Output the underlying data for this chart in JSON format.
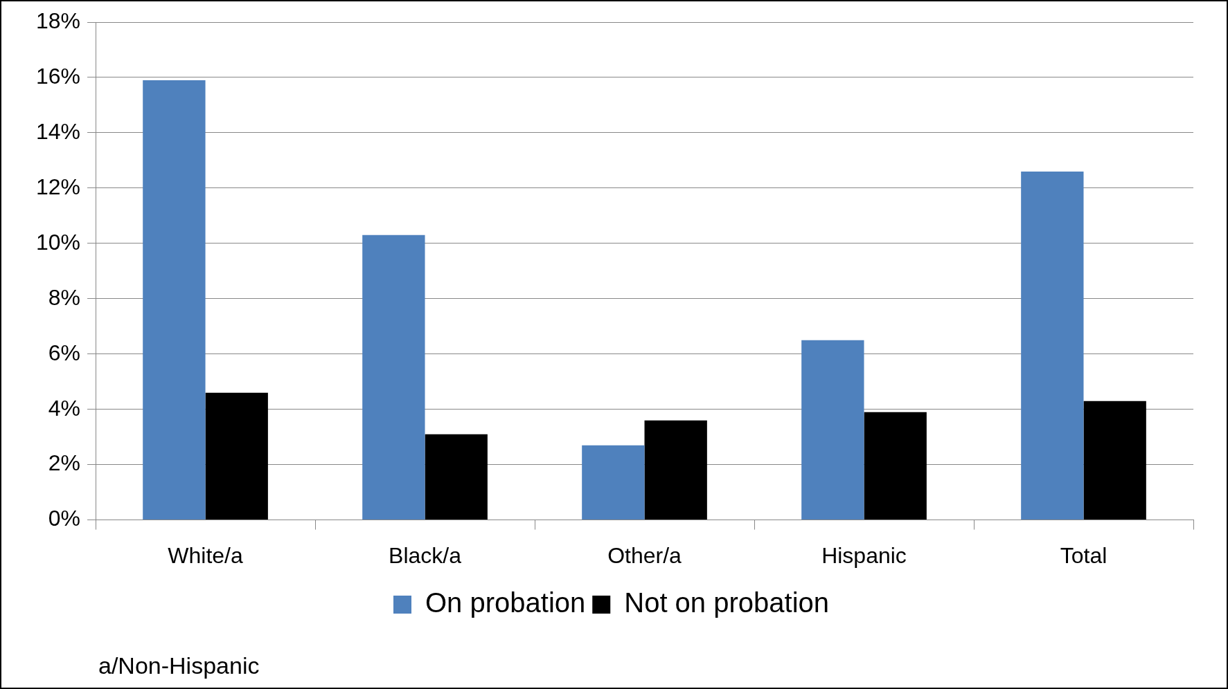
{
  "chart_data": {
    "type": "bar",
    "categories": [
      "White/a",
      "Black/a",
      "Other/a",
      "Hispanic",
      "Total"
    ],
    "series": [
      {
        "name": "On probation",
        "color": "#4f81bd",
        "values": [
          15.9,
          10.3,
          2.7,
          6.5,
          12.6
        ]
      },
      {
        "name": "Not on probation",
        "color": "#000000",
        "values": [
          4.6,
          3.1,
          3.6,
          3.9,
          4.3
        ]
      }
    ],
    "ylim": [
      0,
      18
    ],
    "yticks": [
      {
        "value": 0,
        "label": "0%"
      },
      {
        "value": 2,
        "label": "2%"
      },
      {
        "value": 4,
        "label": "4%"
      },
      {
        "value": 6,
        "label": "6%"
      },
      {
        "value": 8,
        "label": "8%"
      },
      {
        "value": 10,
        "label": "10%"
      },
      {
        "value": 12,
        "label": "12%"
      },
      {
        "value": 14,
        "label": "14%"
      },
      {
        "value": 16,
        "label": "16%"
      },
      {
        "value": 18,
        "label": "18%"
      }
    ],
    "grid": "y",
    "legend": "bottom",
    "annotations": [
      "a/Non-Hispanic"
    ]
  }
}
